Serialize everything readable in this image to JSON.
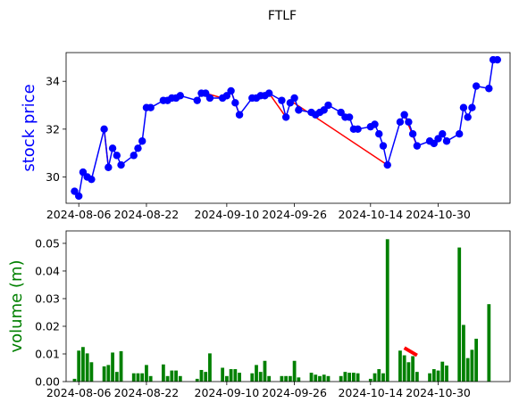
{
  "title": "FTLF",
  "colors": {
    "price_line": "#0000ff",
    "price_marker": "#0000ff",
    "trend": "#ff0000",
    "volume_bar": "#008000",
    "price_label": "#0000ff",
    "volume_label": "#008000"
  },
  "chart_data": [
    {
      "type": "line",
      "title": "FTLF",
      "ylabel": "stock price",
      "xlabel": "",
      "x_ticks": [
        "2024-08-06",
        "2024-08-22",
        "2024-09-10",
        "2024-09-26",
        "2024-10-14",
        "2024-10-30"
      ],
      "y_ticks": [
        "30",
        "32",
        "34"
      ],
      "xlim": [
        "2024-08-03",
        "2024-11-16"
      ],
      "ylim": [
        28.9,
        35.2
      ],
      "grid": false,
      "series": [
        {
          "marker": "circle",
          "x": [
            "2024-08-05",
            "2024-08-06",
            "2024-08-07",
            "2024-08-08",
            "2024-08-09",
            "2024-08-12",
            "2024-08-13",
            "2024-08-14",
            "2024-08-15",
            "2024-08-16",
            "2024-08-19",
            "2024-08-20",
            "2024-08-21",
            "2024-08-22",
            "2024-08-23",
            "2024-08-26",
            "2024-08-27",
            "2024-08-28",
            "2024-08-29",
            "2024-08-30",
            "2024-09-03",
            "2024-09-04",
            "2024-09-05",
            "2024-09-06",
            "2024-09-09",
            "2024-09-10",
            "2024-09-11",
            "2024-09-12",
            "2024-09-13",
            "2024-09-16",
            "2024-09-17",
            "2024-09-18",
            "2024-09-19",
            "2024-09-20",
            "2024-09-23",
            "2024-09-24",
            "2024-09-25",
            "2024-09-26",
            "2024-09-27",
            "2024-09-30",
            "2024-10-01",
            "2024-10-02",
            "2024-10-03",
            "2024-10-04",
            "2024-10-07",
            "2024-10-08",
            "2024-10-09",
            "2024-10-10",
            "2024-10-11",
            "2024-10-14",
            "2024-10-15",
            "2024-10-16",
            "2024-10-17",
            "2024-10-18",
            "2024-10-21",
            "2024-10-22",
            "2024-10-23",
            "2024-10-24",
            "2024-10-25",
            "2024-10-28",
            "2024-10-29",
            "2024-10-30",
            "2024-10-31",
            "2024-11-01",
            "2024-11-04",
            "2024-11-05",
            "2024-11-06",
            "2024-11-07",
            "2024-11-08",
            "2024-11-11",
            "2024-11-12",
            "2024-11-13"
          ],
          "y": [
            29.4,
            29.2,
            30.2,
            30.0,
            29.9,
            32.0,
            30.4,
            31.2,
            30.9,
            30.5,
            30.9,
            31.2,
            31.5,
            32.9,
            32.9,
            33.2,
            33.2,
            33.3,
            33.3,
            33.4,
            33.2,
            33.5,
            33.5,
            33.3,
            33.3,
            33.4,
            33.6,
            33.1,
            32.6,
            33.3,
            33.3,
            33.4,
            33.4,
            33.5,
            33.2,
            32.5,
            33.1,
            33.3,
            32.8,
            32.7,
            32.6,
            32.7,
            32.8,
            33.0,
            32.7,
            32.5,
            32.5,
            32.0,
            32.0,
            32.1,
            32.2,
            31.8,
            31.3,
            30.5,
            32.3,
            32.6,
            32.3,
            31.8,
            31.3,
            31.5,
            31.4,
            31.6,
            31.8,
            31.5,
            31.8,
            32.9,
            32.5,
            32.9,
            33.8,
            33.7,
            34.9,
            34.9
          ]
        }
      ],
      "trend_segments": [
        [
          [
            "2024-08-12",
            32.0
          ],
          [
            "2024-08-13",
            30.4
          ]
        ],
        [
          [
            "2024-09-05",
            33.5
          ],
          [
            "2024-09-09",
            33.3
          ]
        ],
        [
          [
            "2024-09-11",
            33.6
          ],
          [
            "2024-09-13",
            32.6
          ]
        ],
        [
          [
            "2024-09-20",
            33.5
          ],
          [
            "2024-09-24",
            32.5
          ]
        ],
        [
          [
            "2024-09-25",
            33.2
          ],
          [
            "2024-10-18",
            30.5
          ]
        ],
        [
          [
            "2024-10-22",
            32.6
          ],
          [
            "2024-10-25",
            31.3
          ]
        ]
      ]
    },
    {
      "type": "bar",
      "ylabel": "volume (m)",
      "xlabel": "",
      "x_ticks": [
        "2024-08-06",
        "2024-08-22",
        "2024-09-10",
        "2024-09-26",
        "2024-10-14",
        "2024-10-30"
      ],
      "y_ticks": [
        "0.00",
        "0.01",
        "0.02",
        "0.03",
        "0.04",
        "0.05"
      ],
      "xlim": [
        "2024-08-03",
        "2024-11-16"
      ],
      "ylim": [
        0,
        0.0545
      ],
      "grid": false,
      "x": [
        "2024-08-05",
        "2024-08-06",
        "2024-08-07",
        "2024-08-08",
        "2024-08-09",
        "2024-08-12",
        "2024-08-13",
        "2024-08-14",
        "2024-08-15",
        "2024-08-16",
        "2024-08-19",
        "2024-08-20",
        "2024-08-21",
        "2024-08-22",
        "2024-08-23",
        "2024-08-26",
        "2024-08-27",
        "2024-08-28",
        "2024-08-29",
        "2024-08-30",
        "2024-09-03",
        "2024-09-04",
        "2024-09-05",
        "2024-09-06",
        "2024-09-09",
        "2024-09-10",
        "2024-09-11",
        "2024-09-12",
        "2024-09-13",
        "2024-09-16",
        "2024-09-17",
        "2024-09-18",
        "2024-09-19",
        "2024-09-20",
        "2024-09-23",
        "2024-09-24",
        "2024-09-25",
        "2024-09-26",
        "2024-09-27",
        "2024-09-30",
        "2024-10-01",
        "2024-10-02",
        "2024-10-03",
        "2024-10-04",
        "2024-10-07",
        "2024-10-08",
        "2024-10-09",
        "2024-10-10",
        "2024-10-11",
        "2024-10-14",
        "2024-10-15",
        "2024-10-16",
        "2024-10-17",
        "2024-10-18",
        "2024-10-21",
        "2024-10-22",
        "2024-10-23",
        "2024-10-24",
        "2024-10-25",
        "2024-10-28",
        "2024-10-29",
        "2024-10-30",
        "2024-10-31",
        "2024-11-01",
        "2024-11-04",
        "2024-11-05",
        "2024-11-06",
        "2024-11-07",
        "2024-11-08",
        "2024-11-11",
        "2024-11-12",
        "2024-11-13"
      ],
      "values": [
        0.001,
        0.0112,
        0.0125,
        0.0102,
        0.007,
        0.0055,
        0.006,
        0.0105,
        0.0035,
        0.011,
        0.003,
        0.003,
        0.003,
        0.006,
        0.002,
        0.0062,
        0.002,
        0.004,
        0.004,
        0.002,
        0.001,
        0.0042,
        0.0035,
        0.0102,
        0.005,
        0.002,
        0.0045,
        0.0045,
        0.0032,
        0.003,
        0.006,
        0.0035,
        0.0075,
        0.002,
        0.002,
        0.002,
        0.002,
        0.0075,
        0.0015,
        0.0032,
        0.0025,
        0.002,
        0.0025,
        0.002,
        0.002,
        0.0035,
        0.0032,
        0.0032,
        0.003,
        0.001,
        0.003,
        0.0045,
        0.003,
        0.0515,
        0.0112,
        0.0095,
        0.007,
        0.0092,
        0.0035,
        0.003,
        0.0045,
        0.004,
        0.0072,
        0.0058,
        0.0485,
        0.0205,
        0.0085,
        0.0115,
        0.0155,
        0.028,
        0.0,
        0.0
      ],
      "trend_segments": [
        [
          [
            "2024-10-22",
            0.0122
          ],
          [
            "2024-10-25",
            0.0095
          ]
        ]
      ]
    }
  ]
}
